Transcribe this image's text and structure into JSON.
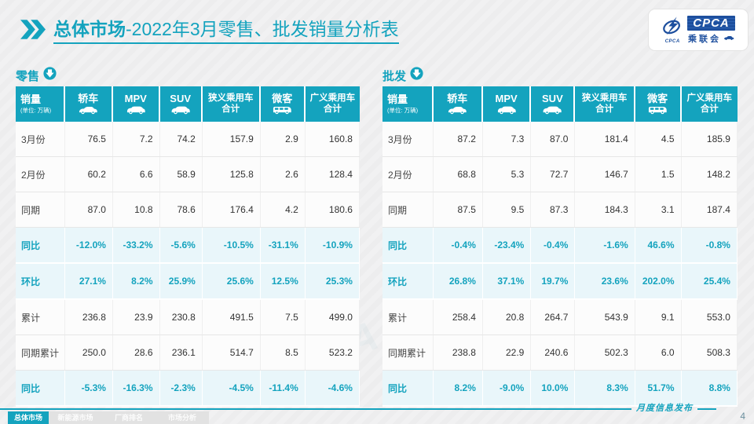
{
  "colors": {
    "accent": "#14a3be",
    "highlight_row_bg": "#e9f6fa",
    "logo_blue": "#1d4f9e",
    "nav_gray": "#e2e2e2"
  },
  "header": {
    "title_bold": "总体市场",
    "title_rest": "-2022年3月零售、批发销量分析表"
  },
  "logo": {
    "acronym": "CPCA",
    "chinese": "乘联会",
    "emblem_text": "CPCA"
  },
  "watermark_text": "CPCA 乘联会",
  "tables": {
    "columns": [
      {
        "key": "sales",
        "label": "销量",
        "sub": "(单位: 万辆)",
        "icon": null
      },
      {
        "key": "sedan",
        "label": "轿车",
        "icon": "sedan"
      },
      {
        "key": "mpv",
        "label": "MPV",
        "icon": "mpv"
      },
      {
        "key": "suv",
        "label": "SUV",
        "icon": "suv"
      },
      {
        "key": "narrow-pv-total",
        "label": "狭义乘用车",
        "label2": "合计",
        "icon": null
      },
      {
        "key": "minibus",
        "label": "微客",
        "icon": "minibus"
      },
      {
        "key": "broad-pv-total",
        "label": "广义乘用车",
        "label2": "合计",
        "icon": null
      }
    ],
    "retail": {
      "label": "零售",
      "rows": [
        {
          "label": "3月份",
          "values": [
            "76.5",
            "7.2",
            "74.2",
            "157.9",
            "2.9",
            "160.8"
          ],
          "highlight": false
        },
        {
          "label": "2月份",
          "values": [
            "60.2",
            "6.6",
            "58.9",
            "125.8",
            "2.6",
            "128.4"
          ],
          "highlight": false
        },
        {
          "label": "同期",
          "values": [
            "87.0",
            "10.8",
            "78.6",
            "176.4",
            "4.2",
            "180.6"
          ],
          "highlight": false
        },
        {
          "label": "同比",
          "values": [
            "-12.0%",
            "-33.2%",
            "-5.6%",
            "-10.5%",
            "-31.1%",
            "-10.9%"
          ],
          "highlight": true
        },
        {
          "label": "环比",
          "values": [
            "27.1%",
            "8.2%",
            "25.9%",
            "25.6%",
            "12.5%",
            "25.3%"
          ],
          "highlight": true
        },
        {
          "label": "累计",
          "values": [
            "236.8",
            "23.9",
            "230.8",
            "491.5",
            "7.5",
            "499.0"
          ],
          "highlight": false
        },
        {
          "label": "同期累计",
          "values": [
            "250.0",
            "28.6",
            "236.1",
            "514.7",
            "8.5",
            "523.2"
          ],
          "highlight": false
        },
        {
          "label": "同比",
          "values": [
            "-5.3%",
            "-16.3%",
            "-2.3%",
            "-4.5%",
            "-11.4%",
            "-4.6%"
          ],
          "highlight": true
        }
      ]
    },
    "wholesale": {
      "label": "批发",
      "rows": [
        {
          "label": "3月份",
          "values": [
            "87.2",
            "7.3",
            "87.0",
            "181.4",
            "4.5",
            "185.9"
          ],
          "highlight": false
        },
        {
          "label": "2月份",
          "values": [
            "68.8",
            "5.3",
            "72.7",
            "146.7",
            "1.5",
            "148.2"
          ],
          "highlight": false
        },
        {
          "label": "同期",
          "values": [
            "87.5",
            "9.5",
            "87.3",
            "184.3",
            "3.1",
            "187.4"
          ],
          "highlight": false
        },
        {
          "label": "同比",
          "values": [
            "-0.4%",
            "-23.4%",
            "-0.4%",
            "-1.6%",
            "46.6%",
            "-0.8%"
          ],
          "highlight": true
        },
        {
          "label": "环比",
          "values": [
            "26.8%",
            "37.1%",
            "19.7%",
            "23.6%",
            "202.0%",
            "25.4%"
          ],
          "highlight": true
        },
        {
          "label": "累计",
          "values": [
            "258.4",
            "20.8",
            "264.7",
            "543.9",
            "9.1",
            "553.0"
          ],
          "highlight": false
        },
        {
          "label": "同期累计",
          "values": [
            "238.8",
            "22.9",
            "240.6",
            "502.3",
            "6.0",
            "508.3"
          ],
          "highlight": false
        },
        {
          "label": "同比",
          "values": [
            "8.2%",
            "-9.0%",
            "10.0%",
            "8.3%",
            "51.7%",
            "8.8%"
          ],
          "highlight": true
        }
      ]
    }
  },
  "nav": {
    "tabs": [
      {
        "label": "总体市场",
        "active": true
      },
      {
        "label": "新能源市场",
        "active": false
      },
      {
        "label": "厂商排名",
        "active": false
      },
      {
        "label": "市场分析",
        "active": false
      }
    ]
  },
  "footer": {
    "note": "月度信息发布",
    "page_number": "4"
  }
}
